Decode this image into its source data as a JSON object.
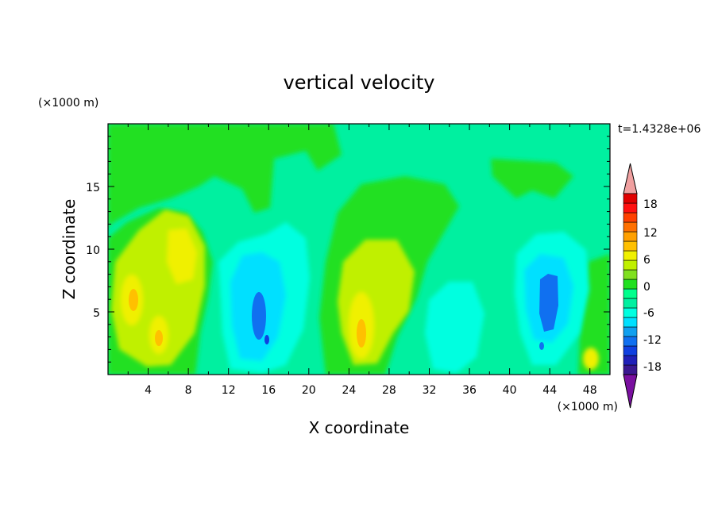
{
  "chart_data": {
    "type": "heatmap",
    "title": "vertical velocity",
    "xlabel": "X coordinate",
    "ylabel": "Z coordinate",
    "x_unit": "(×1000 m)",
    "y_unit": "(×1000 m)",
    "time_label": "t=1.4328e+06",
    "xlim": [
      0,
      50
    ],
    "ylim": [
      0,
      20
    ],
    "x_ticks": [
      "4",
      "8",
      "12",
      "16",
      "20",
      "24",
      "28",
      "32",
      "36",
      "40",
      "44",
      "48"
    ],
    "y_ticks": [
      "5",
      "10",
      "15"
    ],
    "colorbar": {
      "labels": [
        "18",
        "12",
        "6",
        "0",
        "-6",
        "-12",
        "-18"
      ],
      "levels": [
        -20,
        -18,
        -16,
        -14,
        -12,
        -10,
        -8,
        -6,
        -4,
        -2,
        0,
        2,
        4,
        6,
        8,
        10,
        12,
        14,
        16,
        18,
        20
      ],
      "colors": [
        "#7a10a0",
        "#3a1890",
        "#2020b8",
        "#1040e0",
        "#1070f0",
        "#10a0f0",
        "#00e0ff",
        "#00ffe0",
        "#00f0a0",
        "#00ff8c",
        "#20e020",
        "#80e020",
        "#c0f000",
        "#f0f000",
        "#ffc000",
        "#ffa000",
        "#ff7000",
        "#ff4000",
        "#ff1010",
        "#e00000",
        "#f0a0a0"
      ],
      "extend": "both"
    },
    "features": [
      {
        "x": 3.0,
        "z": 6.2,
        "value": 9
      },
      {
        "x": 5.0,
        "z": 3.2,
        "value": 9
      },
      {
        "x": 6.5,
        "z": 9.5,
        "value": 6
      },
      {
        "x": 1.0,
        "z": 8.0,
        "value": 4
      },
      {
        "x": 15.2,
        "z": 5.0,
        "value": -10
      },
      {
        "x": 15.8,
        "z": 3.0,
        "value": -12
      },
      {
        "x": 16.0,
        "z": 9.0,
        "value": -5
      },
      {
        "x": 24.5,
        "z": 3.5,
        "value": 9
      },
      {
        "x": 25.5,
        "z": 8.0,
        "value": 6
      },
      {
        "x": 34.0,
        "z": 5.5,
        "value": -4
      },
      {
        "x": 43.8,
        "z": 6.0,
        "value": -10
      },
      {
        "x": 44.5,
        "z": 9.0,
        "value": -5
      },
      {
        "x": 48.5,
        "z": 1.2,
        "value": 6
      }
    ],
    "grid": false,
    "legend_position": "right"
  }
}
